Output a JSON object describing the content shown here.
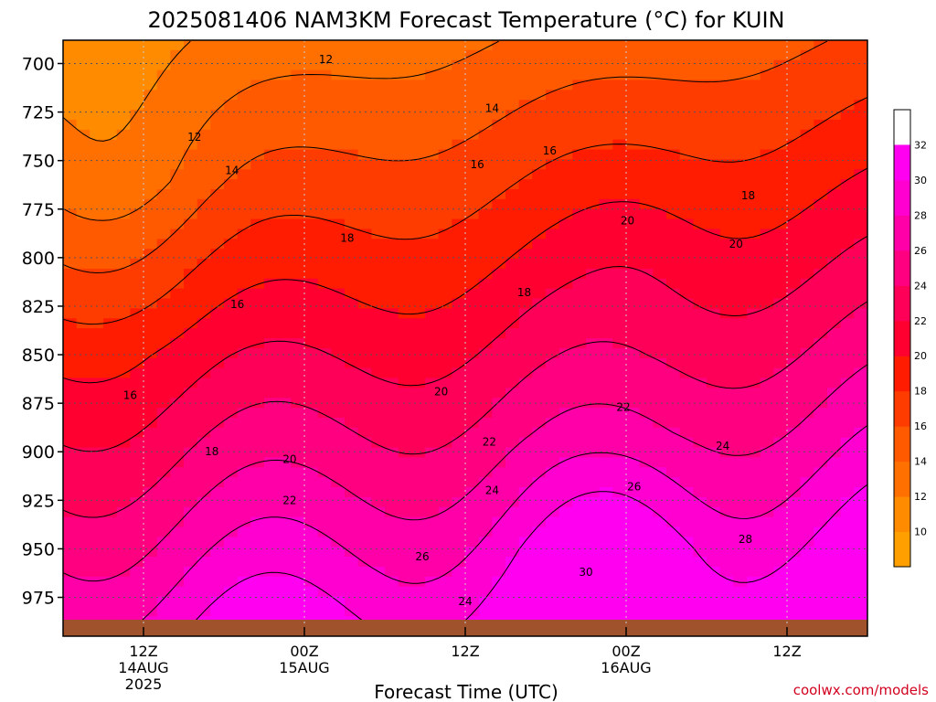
{
  "chart_data": {
    "type": "heatmap",
    "title": "2025081406 NAM3KM Forecast Temperature (°C) for KUIN",
    "xlabel": "Forecast Time (UTC)",
    "ylabel": "",
    "y_unit": "hPa",
    "y_ticks": [
      700,
      725,
      750,
      775,
      800,
      825,
      850,
      875,
      900,
      925,
      950,
      975
    ],
    "ylim": [
      688,
      995
    ],
    "y_inverted": true,
    "x_ticks": [
      {
        "hour": 6,
        "lines": [
          "12Z",
          "14AUG",
          "2025"
        ]
      },
      {
        "hour": 18,
        "lines": [
          "00Z",
          "15AUG"
        ]
      },
      {
        "hour": 30,
        "lines": [
          "12Z"
        ]
      },
      {
        "hour": 42,
        "lines": [
          "00Z",
          "16AUG"
        ]
      },
      {
        "hour": 54,
        "lines": [
          "12Z"
        ]
      }
    ],
    "xlim": [
      0,
      60
    ],
    "x_hours_note": "hours after 2025-08-14 06Z",
    "grid": true,
    "colorbar": {
      "ticks": [
        10,
        12,
        14,
        16,
        18,
        20,
        22,
        24,
        26,
        28,
        30,
        32
      ],
      "colors": [
        "#ffa000",
        "#ff8c00",
        "#ff7000",
        "#ff5a00",
        "#ff3c00",
        "#ff1c00",
        "#ff0030",
        "#ff0058",
        "#ff0080",
        "#ff00a8",
        "#ff00d0",
        "#ff00f0"
      ],
      "range": [
        8,
        34
      ]
    },
    "contour_labels": [
      {
        "text": "12",
        "hour": 19.6,
        "p": 698
      },
      {
        "text": "12",
        "hour": 9.8,
        "p": 738
      },
      {
        "text": "14",
        "hour": 12.6,
        "p": 755
      },
      {
        "text": "14",
        "hour": 32.0,
        "p": 723
      },
      {
        "text": "16",
        "hour": 36.3,
        "p": 745
      },
      {
        "text": "16",
        "hour": 30.9,
        "p": 752
      },
      {
        "text": "16",
        "hour": 13.0,
        "p": 824
      },
      {
        "text": "16",
        "hour": 5.0,
        "p": 871
      },
      {
        "text": "18",
        "hour": 21.2,
        "p": 790
      },
      {
        "text": "18",
        "hour": 51.1,
        "p": 768
      },
      {
        "text": "18",
        "hour": 34.4,
        "p": 818
      },
      {
        "text": "18",
        "hour": 11.1,
        "p": 900
      },
      {
        "text": "20",
        "hour": 42.1,
        "p": 781
      },
      {
        "text": "20",
        "hour": 50.2,
        "p": 793
      },
      {
        "text": "20",
        "hour": 28.2,
        "p": 869
      },
      {
        "text": "20",
        "hour": 16.9,
        "p": 904
      },
      {
        "text": "22",
        "hour": 41.8,
        "p": 877
      },
      {
        "text": "22",
        "hour": 31.8,
        "p": 895
      },
      {
        "text": "22",
        "hour": 16.9,
        "p": 925
      },
      {
        "text": "24",
        "hour": 49.2,
        "p": 897
      },
      {
        "text": "24",
        "hour": 32.0,
        "p": 920
      },
      {
        "text": "24",
        "hour": 30.0,
        "p": 977
      },
      {
        "text": "26",
        "hour": 42.6,
        "p": 918
      },
      {
        "text": "26",
        "hour": 26.8,
        "p": 954
      },
      {
        "text": "28",
        "hour": 50.9,
        "p": 945
      },
      {
        "text": "30",
        "hour": 39.0,
        "p": 962
      }
    ],
    "isotherm_levels": [
      12,
      14,
      16,
      18,
      20,
      22,
      24,
      26,
      28,
      30
    ],
    "ground_color": "#a0522d"
  },
  "credit": "coolwx.com/models"
}
